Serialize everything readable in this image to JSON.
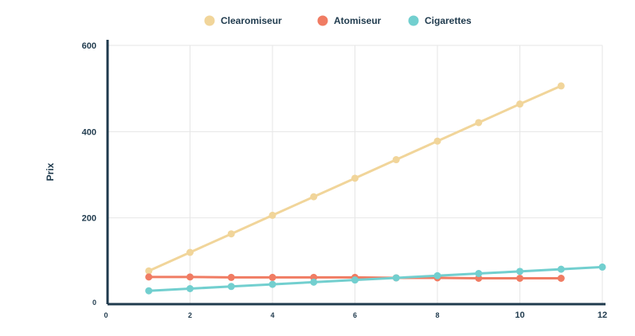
{
  "chart_data": {
    "type": "line",
    "title": "",
    "xlabel": "",
    "ylabel": "Prix",
    "xlim": [
      0,
      12
    ],
    "ylim": [
      0,
      600
    ],
    "x_ticks": [
      "0",
      "2",
      "4",
      "6",
      "8",
      "10",
      "12"
    ],
    "y_ticks": [
      "0",
      "200",
      "400",
      "600"
    ],
    "grid": true,
    "legend_position": "top-center",
    "series": [
      {
        "name": "Clearomiseur",
        "color": "#f1d59a",
        "x": [
          1,
          2,
          3,
          4,
          5,
          6,
          7,
          8,
          9,
          10,
          11
        ],
        "values": [
          77,
          120,
          163,
          206,
          249,
          292,
          335,
          378,
          421,
          464,
          506
        ]
      },
      {
        "name": "Atomiseur",
        "color": "#f07c63",
        "x": [
          1,
          2,
          3,
          4,
          5,
          6,
          7,
          8,
          9,
          10,
          11
        ],
        "values": [
          63,
          63,
          62,
          62,
          62,
          62,
          61,
          61,
          60,
          60,
          60
        ]
      },
      {
        "name": "Cigarettes",
        "color": "#72cfcf",
        "x": [
          1,
          2,
          3,
          4,
          5,
          6,
          7,
          8,
          9,
          10,
          11,
          12
        ],
        "values": [
          31,
          36,
          41,
          46,
          51,
          56,
          61,
          66,
          71,
          76,
          81,
          86
        ]
      }
    ]
  }
}
